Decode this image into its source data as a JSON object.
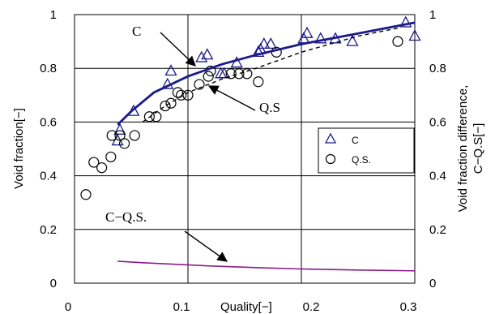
{
  "chart_data": {
    "type": "scatter",
    "title": "",
    "xlabel": "Quality[−]",
    "ylabel_left": "Void fraction[−]",
    "ylabel_right_line1": "Void fraction difference,",
    "ylabel_right_line2": "C−Q.S[−]",
    "xlim": [
      0,
      0.3
    ],
    "ylim_left": [
      0,
      1
    ],
    "ylim_right": [
      0,
      1
    ],
    "x_ticks": [
      "0",
      "0.1",
      "0.2",
      "0.3"
    ],
    "y_ticks_left": [
      "0",
      "0.2",
      "0.4",
      "0.6",
      "0.8",
      "1"
    ],
    "y_ticks_right": [
      "0",
      "0.2",
      "0.4",
      "0.6",
      "0.8",
      "1"
    ],
    "legend": {
      "position": "right",
      "items": [
        {
          "label": "C",
          "marker": "triangle"
        },
        {
          "label": "Q.S.",
          "marker": "circle"
        }
      ]
    },
    "series": [
      {
        "name": "C",
        "kind": "scatter",
        "marker": "triangle",
        "color": "#1a1a8c",
        "points": [
          [
            0.038,
            0.53
          ],
          [
            0.04,
            0.57
          ],
          [
            0.052,
            0.64
          ],
          [
            0.082,
            0.74
          ],
          [
            0.085,
            0.79
          ],
          [
            0.112,
            0.84
          ],
          [
            0.117,
            0.85
          ],
          [
            0.129,
            0.78
          ],
          [
            0.132,
            0.78
          ],
          [
            0.143,
            0.82
          ],
          [
            0.162,
            0.86
          ],
          [
            0.164,
            0.87
          ],
          [
            0.167,
            0.89
          ],
          [
            0.173,
            0.89
          ],
          [
            0.202,
            0.91
          ],
          [
            0.205,
            0.93
          ],
          [
            0.217,
            0.91
          ],
          [
            0.23,
            0.91
          ],
          [
            0.245,
            0.9
          ],
          [
            0.292,
            0.97
          ],
          [
            0.3,
            0.92
          ]
        ]
      },
      {
        "name": "Q.S.",
        "kind": "scatter",
        "marker": "circle",
        "color": "#000000",
        "points": [
          [
            0.01,
            0.33
          ],
          [
            0.017,
            0.45
          ],
          [
            0.024,
            0.43
          ],
          [
            0.032,
            0.47
          ],
          [
            0.033,
            0.55
          ],
          [
            0.04,
            0.55
          ],
          [
            0.044,
            0.52
          ],
          [
            0.053,
            0.55
          ],
          [
            0.066,
            0.62
          ],
          [
            0.072,
            0.62
          ],
          [
            0.08,
            0.66
          ],
          [
            0.085,
            0.67
          ],
          [
            0.091,
            0.71
          ],
          [
            0.094,
            0.7
          ],
          [
            0.1,
            0.7
          ],
          [
            0.11,
            0.74
          ],
          [
            0.118,
            0.77
          ],
          [
            0.12,
            0.79
          ],
          [
            0.138,
            0.78
          ],
          [
            0.145,
            0.78
          ],
          [
            0.152,
            0.78
          ],
          [
            0.162,
            0.75
          ],
          [
            0.178,
            0.86
          ],
          [
            0.285,
            0.9
          ]
        ]
      },
      {
        "name": "",
        "kind": "line",
        "style": "solid",
        "color": "#1a1a8c",
        "points": [
          [
            0.038,
            0.59
          ],
          [
            0.05,
            0.64
          ],
          [
            0.07,
            0.71
          ],
          [
            0.1,
            0.77
          ],
          [
            0.13,
            0.815
          ],
          [
            0.16,
            0.85
          ],
          [
            0.2,
            0.89
          ],
          [
            0.25,
            0.93
          ],
          [
            0.3,
            0.97
          ]
        ]
      },
      {
        "name": "",
        "kind": "line",
        "style": "dashed",
        "color": "#000000",
        "points": [
          [
            0.06,
            0.6
          ],
          [
            0.08,
            0.66
          ],
          [
            0.1,
            0.71
          ],
          [
            0.13,
            0.76
          ],
          [
            0.16,
            0.8
          ],
          [
            0.2,
            0.86
          ],
          [
            0.25,
            0.92
          ],
          [
            0.285,
            0.95
          ]
        ]
      },
      {
        "name": "",
        "kind": "line",
        "style": "solid",
        "color": "#8b1a8b",
        "axis": "right",
        "points": [
          [
            0.038,
            0.082
          ],
          [
            0.06,
            0.076
          ],
          [
            0.09,
            0.07
          ],
          [
            0.12,
            0.064
          ],
          [
            0.16,
            0.058
          ],
          [
            0.2,
            0.053
          ],
          [
            0.25,
            0.049
          ],
          [
            0.3,
            0.046
          ]
        ]
      }
    ],
    "annotations": [
      {
        "text": "C",
        "target": [
          0.11,
          0.82
        ]
      },
      {
        "text": "Q.S",
        "target": [
          0.12,
          0.78
        ]
      },
      {
        "text": "C−Q.S.",
        "target": [
          0.18,
          0.07
        ]
      }
    ],
    "grid": true
  }
}
